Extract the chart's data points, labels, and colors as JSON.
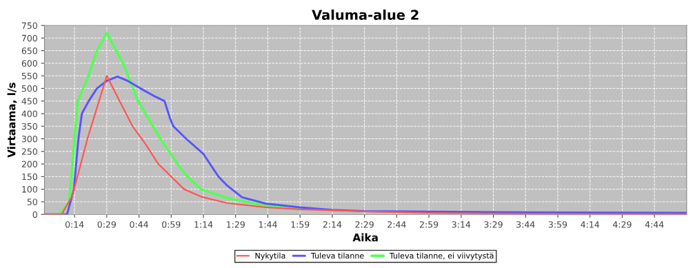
{
  "chart_data": {
    "type": "line",
    "title": "Valuma-alue 2",
    "xlabel": "Aika",
    "ylabel": "Virtaama, l/s",
    "xlim": [
      0,
      299
    ],
    "ylim": [
      0,
      750
    ],
    "xticks": [
      {
        "value": 14,
        "label": "0:14"
      },
      {
        "value": 29,
        "label": "0:29"
      },
      {
        "value": 44,
        "label": "0:44"
      },
      {
        "value": 59,
        "label": "0:59"
      },
      {
        "value": 74,
        "label": "1:14"
      },
      {
        "value": 89,
        "label": "1:29"
      },
      {
        "value": 104,
        "label": "1:44"
      },
      {
        "value": 119,
        "label": "1:59"
      },
      {
        "value": 134,
        "label": "2:14"
      },
      {
        "value": 149,
        "label": "2:29"
      },
      {
        "value": 164,
        "label": "2:44"
      },
      {
        "value": 179,
        "label": "2:59"
      },
      {
        "value": 194,
        "label": "3:14"
      },
      {
        "value": 209,
        "label": "3:29"
      },
      {
        "value": 224,
        "label": "3:44"
      },
      {
        "value": 239,
        "label": "3:59"
      },
      {
        "value": 254,
        "label": "4:14"
      },
      {
        "value": 269,
        "label": "4:29"
      },
      {
        "value": 284,
        "label": "4:44"
      }
    ],
    "yticks": [
      0,
      50,
      100,
      150,
      200,
      250,
      300,
      350,
      400,
      450,
      500,
      550,
      600,
      650,
      700,
      750
    ],
    "grid": true,
    "legend": "bottom",
    "marker": "none",
    "line_style": "solid",
    "series": [
      {
        "name": "Nykytila",
        "color": "#ff5555",
        "x": [
          0,
          8,
          13,
          20,
          29,
          35,
          41,
          47,
          53,
          59,
          65,
          73,
          85,
          103,
          119,
          149,
          179,
          225,
          299
        ],
        "values": [
          0,
          0,
          75,
          300,
          550,
          450,
          350,
          280,
          200,
          150,
          100,
          70,
          45,
          28,
          20,
          12,
          6,
          3,
          1
        ]
      },
      {
        "name": "Tuleva tilanne",
        "color": "#5555ff",
        "x": [
          0,
          10.5,
          13.7,
          15.8,
          17.4,
          20.6,
          24.4,
          29,
          34,
          38.8,
          44.7,
          51,
          55.9,
          58.5,
          60,
          66,
          74,
          81,
          85,
          92,
          103,
          119,
          134,
          149,
          179,
          225,
          299
        ],
        "values": [
          0,
          0,
          100,
          300,
          400,
          450,
          500,
          530,
          547,
          530,
          500,
          470,
          450,
          380,
          350,
          300,
          240,
          150,
          115,
          68,
          43,
          28,
          18,
          13,
          11,
          8,
          6
        ]
      },
      {
        "name": "Tuleva tilanne, ei viivytystä",
        "color": "#55ff55",
        "x": [
          0,
          7,
          11.5,
          14,
          15.5,
          20.5,
          24.4,
          29,
          36.6,
          43.6,
          54,
          62,
          66.5,
          73,
          85,
          103,
          119
        ],
        "values": [
          0,
          0,
          50,
          300,
          450,
          550,
          650,
          720,
          600,
          450,
          300,
          200,
          150,
          100,
          65,
          35,
          24
        ]
      }
    ]
  }
}
